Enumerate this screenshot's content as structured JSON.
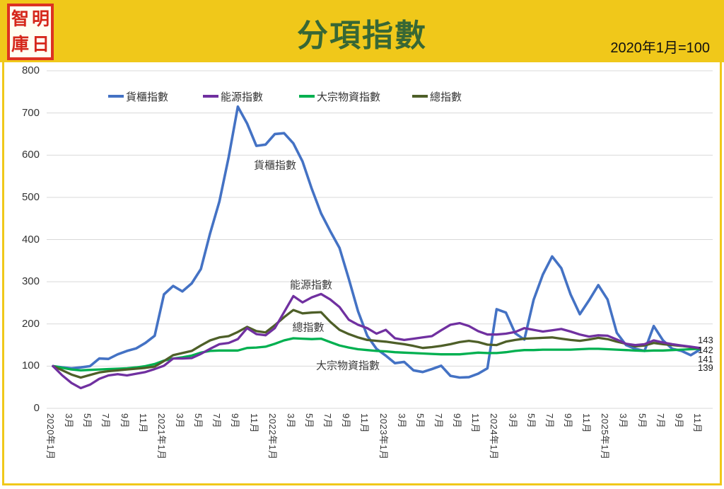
{
  "header": {
    "logo_chars": [
      "智",
      "明",
      "庫",
      "日"
    ],
    "title": "分項指數",
    "subtitle": "2020年1月=100"
  },
  "colors": {
    "header_yellow": "#F0C81A",
    "title_green": "#376735",
    "grid": "#D9D9D9",
    "logo_red": "#D5281B"
  },
  "chart_data": {
    "type": "line",
    "title": "分項指數",
    "base_note": "2020年1月=100",
    "ylim": [
      0,
      800
    ],
    "yticks": [
      0,
      100,
      200,
      300,
      400,
      500,
      600,
      700,
      800
    ],
    "grid": true,
    "legend_position": "top",
    "x_start": "2020年1月",
    "x_end": "2025年11月",
    "x_interval": "monthly",
    "x_tick_labels": [
      "2020年1月",
      "3月",
      "5月",
      "7月",
      "9月",
      "11月",
      "2021年1月",
      "3月",
      "5月",
      "7月",
      "9月",
      "11月",
      "2022年1月",
      "3月",
      "5月",
      "7月",
      "9月",
      "11月",
      "2023年1月",
      "3月",
      "5月",
      "7月",
      "9月",
      "11月",
      "2024年1月",
      "3月",
      "5月",
      "7月",
      "9月",
      "11月",
      "2025年1月",
      "3月",
      "5月",
      "7月",
      "9月",
      "11月"
    ],
    "series": [
      {
        "key": "container-index",
        "name": "貨櫃指數",
        "color": "#4472C4",
        "values": [
          100,
          97,
          95,
          97,
          100,
          118,
          117,
          128,
          136,
          142,
          155,
          172,
          270,
          290,
          277,
          296,
          330,
          415,
          490,
          595,
          715,
          675,
          622,
          625,
          650,
          652,
          628,
          585,
          520,
          462,
          420,
          380,
          307,
          230,
          172,
          141,
          125,
          107,
          110,
          90,
          86,
          93,
          101,
          77,
          73,
          74,
          82,
          95,
          235,
          227,
          178,
          163,
          257,
          317,
          360,
          332,
          270,
          223,
          256,
          292,
          258,
          179,
          150,
          141,
          136,
          195,
          161,
          141,
          136,
          126,
          139
        ]
      },
      {
        "key": "energy-index",
        "name": "能源指數",
        "color": "#7030A0",
        "values": [
          100,
          78,
          60,
          48,
          56,
          70,
          78,
          81,
          78,
          82,
          86,
          93,
          101,
          118,
          118,
          119,
          129,
          141,
          152,
          155,
          164,
          190,
          176,
          173,
          190,
          228,
          266,
          251,
          263,
          271,
          258,
          240,
          210,
          198,
          190,
          177,
          186,
          166,
          162,
          165,
          168,
          171,
          185,
          198,
          202,
          195,
          183,
          175,
          175,
          177,
          181,
          190,
          186,
          182,
          185,
          188,
          182,
          175,
          170,
          173,
          172,
          163,
          153,
          150,
          152,
          161,
          156,
          152,
          149,
          146,
          143
        ]
      },
      {
        "key": "commodity-index",
        "name": "大宗物資指數",
        "color": "#00B050",
        "values": [
          100,
          96,
          92,
          90,
          91,
          92,
          93,
          94,
          95,
          97,
          100,
          105,
          113,
          118,
          121,
          125,
          132,
          136,
          137,
          137,
          137,
          143,
          144,
          146,
          153,
          161,
          166,
          165,
          164,
          165,
          157,
          149,
          144,
          140,
          138,
          136,
          135,
          133,
          132,
          131,
          130,
          129,
          128,
          128,
          128,
          130,
          132,
          131,
          131,
          133,
          136,
          138,
          138,
          139,
          139,
          139,
          139,
          140,
          141,
          141,
          140,
          139,
          138,
          137,
          136,
          137,
          137,
          138,
          139,
          140,
          141
        ]
      },
      {
        "key": "total-index",
        "name": "總指數",
        "color": "#4E5F28",
        "values": [
          100,
          90,
          80,
          73,
          79,
          85,
          88,
          90,
          92,
          94,
          96,
          99,
          112,
          126,
          131,
          136,
          149,
          161,
          168,
          171,
          181,
          193,
          183,
          180,
          197,
          216,
          233,
          225,
          227,
          228,
          205,
          186,
          176,
          168,
          162,
          160,
          158,
          155,
          152,
          148,
          143,
          145,
          148,
          152,
          157,
          160,
          157,
          151,
          150,
          158,
          162,
          165,
          166,
          167,
          168,
          165,
          162,
          160,
          163,
          167,
          164,
          158,
          153,
          147,
          149,
          155,
          152,
          150,
          148,
          145,
          142
        ]
      }
    ],
    "legend": [
      {
        "label": "貨櫃指數",
        "color": "#4472C4",
        "x": 153
      },
      {
        "label": "能源指數",
        "color": "#7030A0",
        "x": 287
      },
      {
        "label": "大宗物資指數",
        "color": "#00B050",
        "x": 423
      },
      {
        "label": "總指數",
        "color": "#4E5F28",
        "x": 583
      }
    ],
    "annotations": [
      {
        "text": "貨櫃指數",
        "x": 389,
        "y": 233
      },
      {
        "text": "能源指數",
        "x": 440,
        "y": 402
      },
      {
        "text": "總指數",
        "x": 436,
        "y": 462
      },
      {
        "text": "大宗物資指數",
        "x": 492,
        "y": 516
      }
    ],
    "end_labels": [
      {
        "text": "143",
        "y": 480
      },
      {
        "text": "142",
        "y": 494
      },
      {
        "text": "141",
        "y": 507
      },
      {
        "text": "139",
        "y": 519
      }
    ]
  }
}
